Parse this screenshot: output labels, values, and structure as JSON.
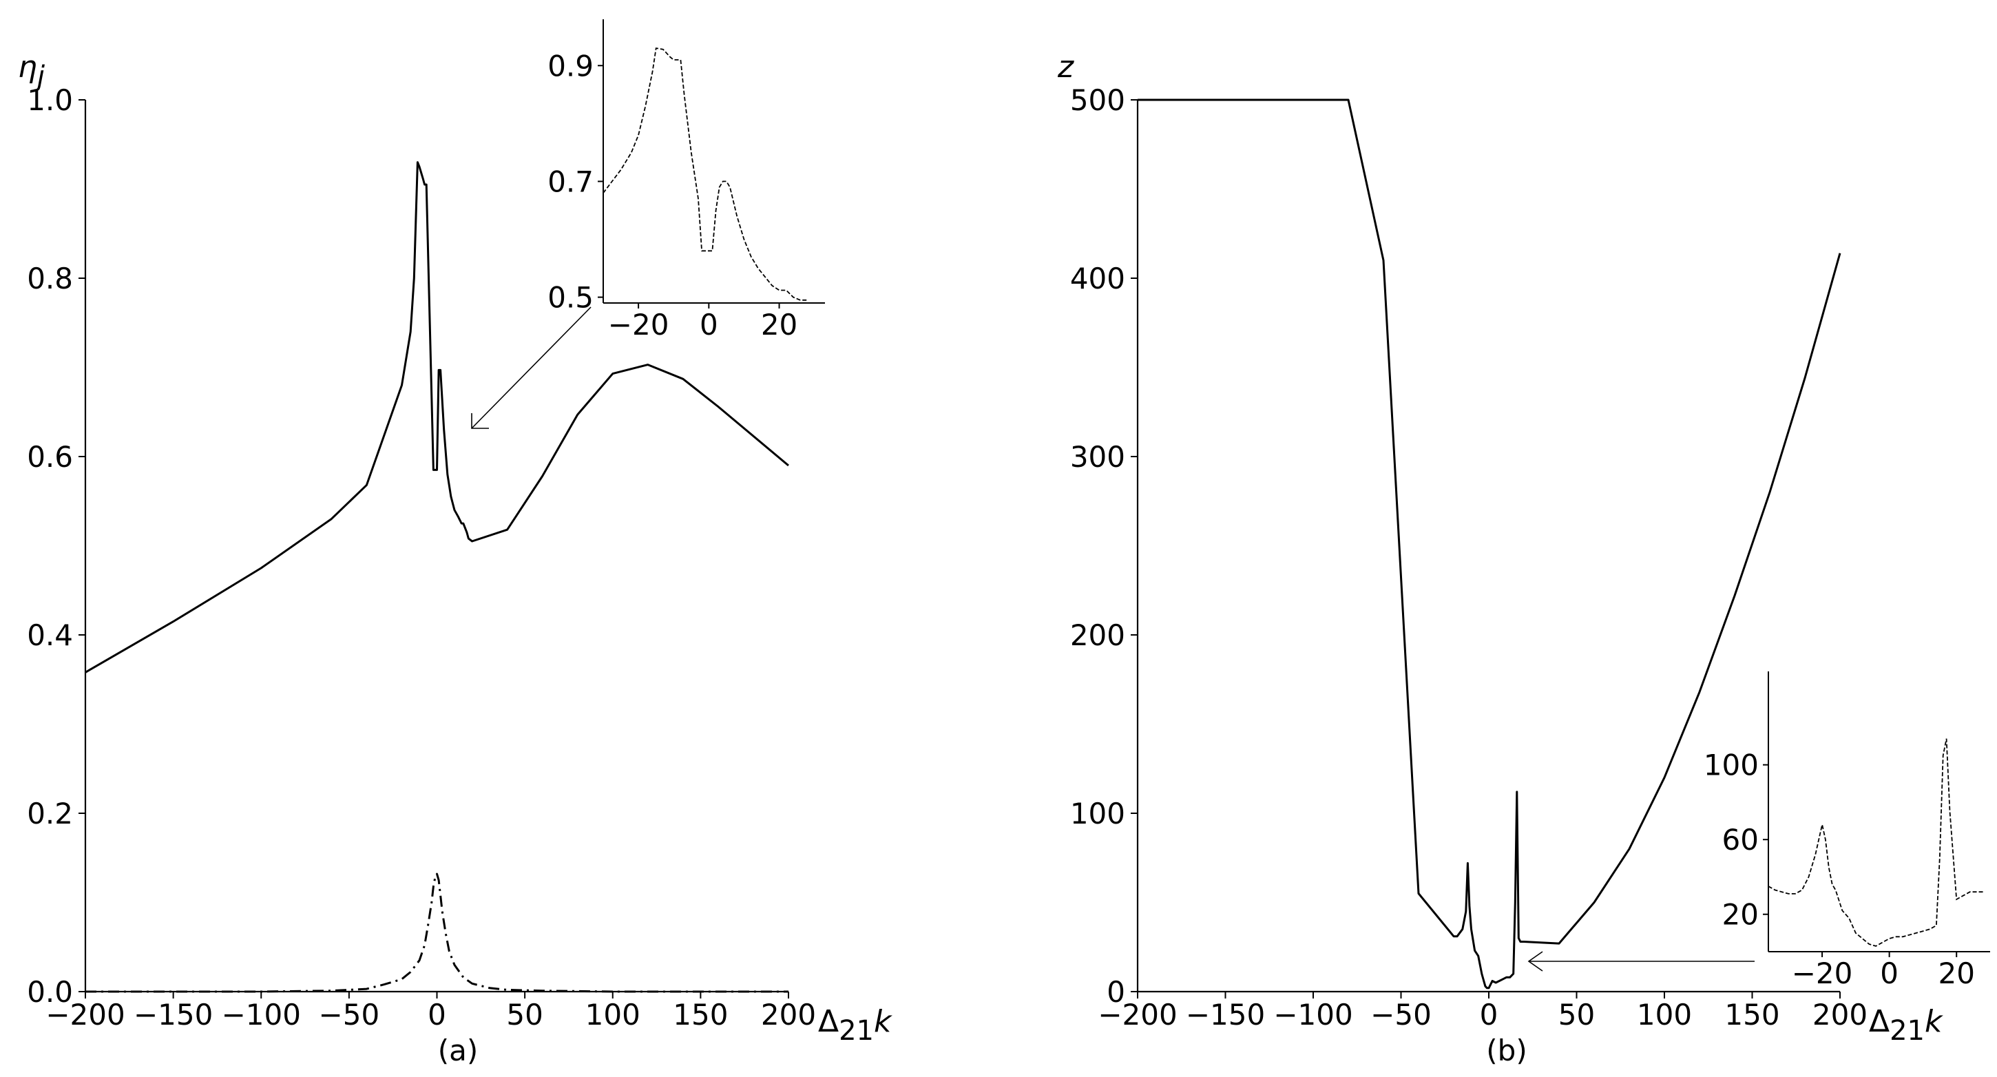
{
  "chart_data": [
    {
      "panel": "a",
      "type": "line",
      "caption": "(a)",
      "ylabel": {
        "main": "η",
        "sub": "j"
      },
      "xlabel": {
        "main": "Δ",
        "sub": "21",
        "tail": "k"
      },
      "xlim": [
        -200,
        200
      ],
      "ylim": [
        0,
        1.0
      ],
      "xticks": [
        -200,
        -150,
        -100,
        -50,
        0,
        50,
        100,
        150,
        200
      ],
      "xtick_labels": [
        "−200",
        "−150",
        "−100",
        "−50",
        "0",
        "50",
        "100",
        "150",
        "200"
      ],
      "yticks": [
        0,
        0.2,
        0.4,
        0.6,
        0.8,
        1.0
      ],
      "ytick_labels": [
        "0.0",
        "0.2",
        "0.4",
        "0.6",
        "0.8",
        "1.0"
      ],
      "series": [
        {
          "style": "solid",
          "x": [
            -200,
            -150,
            -100,
            -60,
            -40,
            -20,
            -15,
            -13,
            -11,
            -10,
            -8,
            -7,
            -6,
            -2,
            0,
            1,
            2,
            4,
            6,
            8,
            10,
            12,
            14,
            15,
            17,
            18,
            20,
            40,
            60,
            80,
            100,
            120,
            140,
            160,
            200
          ],
          "y": [
            0.358,
            0.415,
            0.475,
            0.53,
            0.568,
            0.68,
            0.74,
            0.8,
            0.93,
            0.925,
            0.912,
            0.905,
            0.905,
            0.585,
            0.585,
            0.697,
            0.697,
            0.63,
            0.58,
            0.555,
            0.54,
            0.533,
            0.525,
            0.525,
            0.515,
            0.508,
            0.505,
            0.518,
            0.578,
            0.647,
            0.693,
            0.703,
            0.687,
            0.656,
            0.59
          ]
        },
        {
          "style": "dashdot",
          "x": [
            -200,
            -100,
            -60,
            -40,
            -30,
            -20,
            -15,
            -10,
            -7,
            -5,
            -3,
            -2,
            -1,
            0,
            1,
            2,
            3,
            5,
            7,
            10,
            15,
            20,
            30,
            40,
            60,
            100,
            200
          ],
          "y": [
            0,
            0,
            0.001,
            0.003,
            0.008,
            0.014,
            0.022,
            0.035,
            0.052,
            0.075,
            0.1,
            0.118,
            0.128,
            0.132,
            0.125,
            0.108,
            0.09,
            0.065,
            0.045,
            0.03,
            0.016,
            0.009,
            0.004,
            0.002,
            0.001,
            0,
            0
          ]
        }
      ],
      "inset": {
        "xlim": [
          -30,
          33
        ],
        "ylim": [
          0.49,
          0.98
        ],
        "xticks": [
          -20,
          0,
          20
        ],
        "xtick_labels": [
          "−20",
          "0",
          "20"
        ],
        "yticks": [
          0.5,
          0.7,
          0.9
        ],
        "ytick_labels": [
          "0.5",
          "0.7",
          "0.9"
        ],
        "x": [
          -30,
          -25,
          -22,
          -20,
          -18,
          -16,
          -15,
          -13,
          -11,
          -10,
          -9,
          -8,
          -7,
          -5,
          -3,
          -2,
          0,
          1,
          2,
          3,
          4,
          5,
          6,
          8,
          10,
          12,
          14,
          16,
          18,
          20,
          22,
          24,
          26,
          28
        ],
        "y": [
          0.68,
          0.72,
          0.75,
          0.78,
          0.83,
          0.89,
          0.93,
          0.928,
          0.915,
          0.91,
          0.91,
          0.91,
          0.85,
          0.75,
          0.67,
          0.58,
          0.58,
          0.58,
          0.65,
          0.69,
          0.7,
          0.7,
          0.69,
          0.64,
          0.6,
          0.57,
          0.55,
          0.535,
          0.52,
          0.512,
          0.512,
          0.5,
          0.495,
          0.495
        ]
      }
    },
    {
      "panel": "b",
      "type": "line",
      "caption": "(b)",
      "ylabel": {
        "main": "z"
      },
      "xlabel": {
        "main": "Δ",
        "sub": "21",
        "tail": "k"
      },
      "xlim": [
        -200,
        200
      ],
      "ylim": [
        0,
        500
      ],
      "xticks": [
        -200,
        -150,
        -100,
        -50,
        0,
        50,
        100,
        150,
        200
      ],
      "xtick_labels": [
        "−200",
        "−150",
        "−100",
        "−50",
        "0",
        "50",
        "100",
        "150",
        "200"
      ],
      "yticks": [
        0,
        100,
        200,
        300,
        400,
        500
      ],
      "ytick_labels": [
        "0",
        "100",
        "200",
        "300",
        "400",
        "500"
      ],
      "series": [
        {
          "style": "solid",
          "x": [
            -200,
            -80,
            -60,
            -40,
            -20,
            -18,
            -15,
            -13,
            -12,
            -11,
            -10,
            -8,
            -6,
            -4,
            -2,
            -1,
            0,
            1,
            2,
            4,
            6,
            8,
            10,
            12,
            14,
            15,
            16,
            17,
            18,
            20,
            40,
            60,
            80,
            100,
            120,
            140,
            160,
            180,
            200
          ],
          "y": [
            500,
            500,
            410,
            55,
            31,
            31,
            35,
            45,
            72,
            48,
            35,
            23,
            20,
            10,
            3,
            2,
            2,
            4,
            6,
            5,
            6,
            7,
            8,
            8,
            10,
            50,
            112,
            30,
            28,
            28,
            27,
            50,
            80,
            120,
            168,
            222,
            280,
            344,
            414
          ]
        }
      ],
      "inset": {
        "xlim": [
          -36,
          30
        ],
        "ylim": [
          0,
          150
        ],
        "xticks": [
          -20,
          0,
          20
        ],
        "xtick_labels": [
          "−20",
          "0",
          "20"
        ],
        "yticks": [
          20,
          60,
          100
        ],
        "ytick_labels": [
          "20",
          "60",
          "100"
        ],
        "x": [
          -36,
          -34,
          -32,
          -30,
          -28,
          -26,
          -24,
          -22,
          -20,
          -19,
          -18,
          -17,
          -16,
          -14,
          -12,
          -10,
          -8,
          -6,
          -4,
          -2,
          0,
          2,
          4,
          6,
          8,
          10,
          12,
          14,
          15,
          16,
          17,
          18,
          20,
          22,
          24,
          26,
          28
        ],
        "y": [
          35,
          33,
          32,
          31,
          31,
          33,
          40,
          52,
          68,
          60,
          45,
          36,
          33,
          22,
          18,
          10,
          7,
          4,
          3,
          5,
          7,
          8,
          8,
          9,
          10,
          11,
          12,
          14,
          50,
          105,
          114,
          75,
          28,
          30,
          32,
          32,
          32
        ]
      }
    }
  ]
}
